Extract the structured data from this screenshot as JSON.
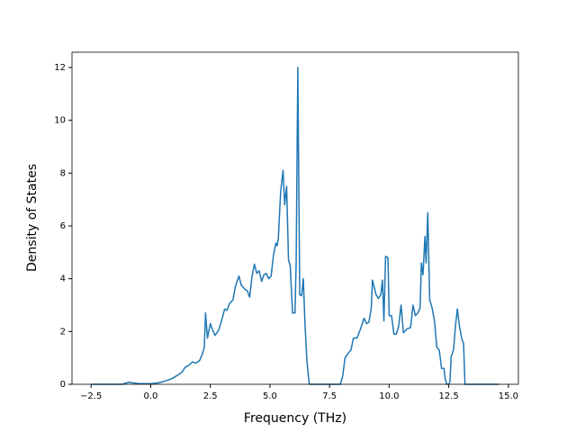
{
  "chart_data": {
    "type": "line",
    "xlabel": "Frequency (THz)",
    "ylabel": "Density of States",
    "xlim": [
      -3.3,
      15.42
    ],
    "ylim": [
      0,
      12.58
    ],
    "xticks": [
      {
        "value": -2.5,
        "label": "−2.5"
      },
      {
        "value": 0,
        "label": "0.0"
      },
      2.5,
      {
        "value": 5,
        "label": "5.0"
      },
      7.5,
      {
        "value": 10,
        "label": "10.0"
      },
      12.5,
      {
        "value": 15,
        "label": "15.0"
      }
    ],
    "yticks": [
      0,
      2,
      4,
      6,
      8,
      10,
      12
    ],
    "grid": false,
    "series": [
      {
        "name": null,
        "color": "#1f77b4",
        "x": [
          -2.5,
          -1.2,
          -0.9,
          -0.75,
          -0.5,
          0,
          0.3,
          0.6,
          0.9,
          1.1,
          1.3,
          1.45,
          1.6,
          1.75,
          1.9,
          2.05,
          2.15,
          2.25,
          2.3,
          2.38,
          2.5,
          2.6,
          2.7,
          2.85,
          3.0,
          3.1,
          3.2,
          3.3,
          3.45,
          3.55,
          3.7,
          3.8,
          3.95,
          4.05,
          4.15,
          4.25,
          4.35,
          4.45,
          4.55,
          4.65,
          4.75,
          4.85,
          4.95,
          5.05,
          5.15,
          5.25,
          5.3,
          5.35,
          5.45,
          5.55,
          5.62,
          5.7,
          5.78,
          5.85,
          5.95,
          6.05,
          6.1,
          6.17,
          6.25,
          6.33,
          6.4,
          6.47,
          6.55,
          6.65,
          7.95,
          8.05,
          8.15,
          8.3,
          8.4,
          8.5,
          8.65,
          8.8,
          8.95,
          9.05,
          9.15,
          9.25,
          9.3,
          9.45,
          9.55,
          9.65,
          9.72,
          9.78,
          9.85,
          9.95,
          10.0,
          10.1,
          10.2,
          10.3,
          10.4,
          10.5,
          10.6,
          10.75,
          10.9,
          11.0,
          11.1,
          11.2,
          11.3,
          11.35,
          11.42,
          11.5,
          11.55,
          11.62,
          11.7,
          11.8,
          11.9,
          12.0,
          12.1,
          12.2,
          12.3,
          12.35,
          12.42,
          12.5,
          12.55,
          12.6,
          12.7,
          12.78,
          12.86,
          12.95,
          13.05,
          13.12,
          13.18,
          14.6
        ],
        "values": [
          0,
          0,
          0.08,
          0.05,
          0.03,
          0.02,
          0.05,
          0.12,
          0.22,
          0.33,
          0.45,
          0.65,
          0.72,
          0.85,
          0.8,
          0.9,
          1.1,
          1.4,
          2.7,
          1.75,
          2.3,
          2.05,
          1.85,
          2.05,
          2.5,
          2.85,
          2.8,
          3.05,
          3.2,
          3.7,
          4.1,
          3.75,
          3.6,
          3.55,
          3.3,
          4.1,
          4.55,
          4.2,
          4.3,
          3.9,
          4.15,
          4.2,
          4.0,
          4.1,
          4.9,
          5.35,
          5.25,
          5.5,
          7.3,
          8.1,
          6.8,
          7.5,
          4.7,
          4.5,
          2.7,
          2.7,
          4.6,
          12.0,
          3.4,
          3.35,
          4.0,
          2.3,
          0.9,
          0,
          0,
          0.3,
          1.0,
          1.2,
          1.3,
          1.75,
          1.75,
          2.1,
          2.5,
          2.3,
          2.35,
          2.9,
          3.95,
          3.4,
          3.25,
          3.4,
          3.95,
          2.4,
          4.85,
          4.8,
          2.6,
          2.6,
          1.9,
          1.9,
          2.2,
          3.0,
          1.95,
          2.1,
          2.15,
          3.0,
          2.6,
          2.7,
          2.9,
          4.6,
          4.15,
          5.6,
          4.6,
          6.5,
          3.2,
          2.9,
          2.4,
          1.4,
          1.3,
          0.6,
          0.6,
          0.2,
          0,
          0,
          0.1,
          1.05,
          1.3,
          2.2,
          2.85,
          2.2,
          1.7,
          1.55,
          0,
          0
        ]
      }
    ]
  }
}
